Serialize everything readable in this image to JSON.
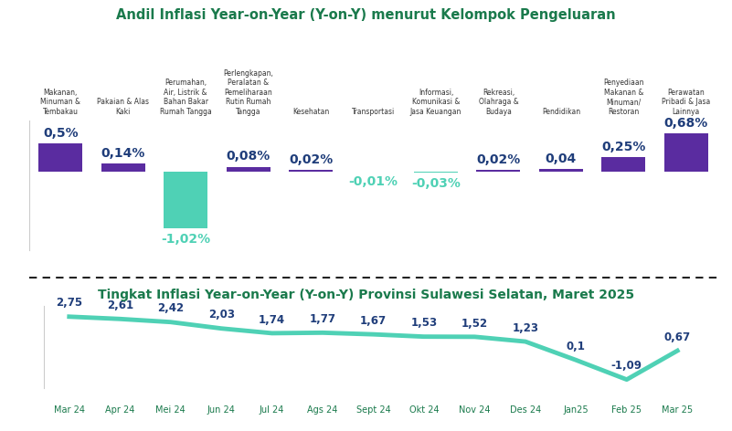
{
  "chart_data": [
    {
      "type": "bar",
      "title": "Andil Inflasi Year-on-Year (Y-on-Y) menurut Kelompok Pengeluaran",
      "categories": [
        "Makanan, Minuman & Tembakau",
        "Pakaian & Alas Kaki",
        "Perumahan, Air, Listrik & Bahan Bakar Rumah Tangga",
        "Perlengkapan, Peralatan & Pemeliharaan Rutin Rumah Tangga",
        "Kesehatan",
        "Transportasi",
        "Informasi, Komunikasi & Jasa Keuangan",
        "Rekreasi, Olahraga & Budaya",
        "Pendidikan",
        "Penyediaan Makanan & Minuman/ Restoran",
        "Perawatan Pribadi & Jasa Lainnya"
      ],
      "values": [
        0.5,
        0.14,
        -1.02,
        0.08,
        0.02,
        -0.01,
        -0.03,
        0.02,
        0.04,
        0.25,
        0.68
      ],
      "value_labels": [
        "0,5%",
        "0,14%",
        "-1,02%",
        "0,08%",
        "0,02%",
        "-0,01%",
        "-0,03%",
        "0,02%",
        "0,04",
        "0,25%",
        "0,68%"
      ],
      "colors": [
        "#5a2ca0",
        "#5a2ca0",
        "#4fd1b5",
        "#5a2ca0",
        "#5a2ca0",
        "#4fd1b5",
        "#4fd1b5",
        "#5a2ca0",
        "#5a2ca0",
        "#5a2ca0",
        "#5a2ca0"
      ],
      "ylim": [
        -1.4,
        0.9
      ],
      "yticks": [],
      "data_labels": true,
      "tick_labels": "x"
    },
    {
      "type": "line",
      "title": "Tingkat Inflasi Year-on-Year (Y-on-Y) Provinsi Sulawesi Selatan, Maret 2025",
      "categories": [
        "Mar 24",
        "Apr 24",
        "Mei 24",
        "Jun 24",
        "Jul 24",
        "Ags 24",
        "Sept 24",
        "Okt 24",
        "Nov 24",
        "Des 24",
        "Jan25",
        "Feb 25",
        "Mar 25"
      ],
      "values": [
        2.75,
        2.61,
        2.42,
        2.03,
        1.74,
        1.77,
        1.67,
        1.53,
        1.52,
        1.23,
        0.1,
        -1.09,
        0.67
      ],
      "value_labels": [
        "2,75",
        "2,61",
        "2,42",
        "2,03",
        "1,74",
        "1,77",
        "1,67",
        "1,53",
        "1,52",
        "1,23",
        "0,1",
        "-1,09",
        "0,67"
      ],
      "color": "#4fd1b5",
      "ylim": [
        -1.6,
        3.4
      ],
      "yticks": [],
      "data_labels": true,
      "tick_labels": "x"
    }
  ]
}
